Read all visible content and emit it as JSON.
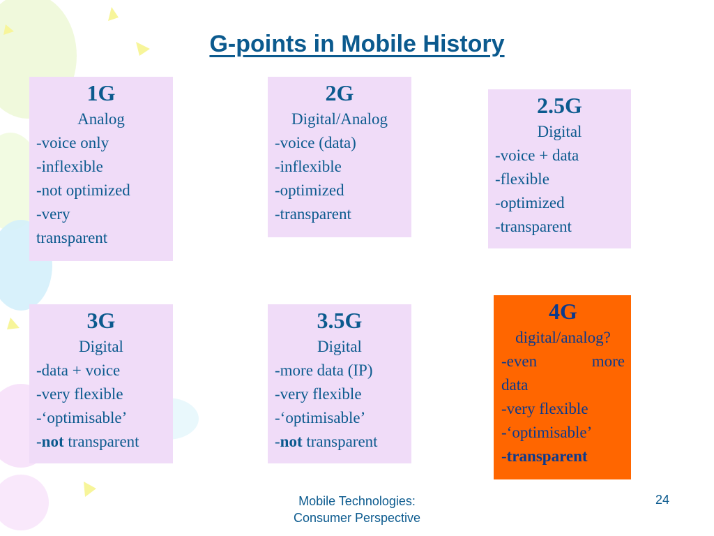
{
  "slide": {
    "title": "G-points in Mobile History",
    "footer_line1": "Mobile Technologies:",
    "footer_line2": "Consumer Perspective",
    "page_number": "24"
  },
  "cards": [
    {
      "gen": "1G",
      "tech": "Analog",
      "lines": [
        "-voice only",
        "-inflexible",
        "-not optimized",
        "-very",
        "transparent"
      ]
    },
    {
      "gen": "2G",
      "tech": "Digital/Analog",
      "lines": [
        "-voice (data)",
        "-inflexible",
        "-optimized",
        "-transparent"
      ]
    },
    {
      "gen": "2.5G",
      "tech": "Digital",
      "lines": [
        "-voice + data",
        "-flexible",
        "-optimized",
        "-transparent"
      ]
    },
    {
      "gen": "3G",
      "tech": "Digital",
      "lines": [
        "-data + voice",
        "-very flexible",
        "-‘optimisable’"
      ],
      "last_prefix": "-",
      "last_bold": "not",
      "last_rest": " transparent"
    },
    {
      "gen": "3.5G",
      "tech": "Digital",
      "lines": [
        "-more data (IP)",
        "-very flexible",
        "-‘optimisable’"
      ],
      "last_prefix": "-",
      "last_bold": "not",
      "last_rest": " transparent"
    },
    {
      "gen": "4G",
      "tech": "digital/analog?",
      "line_a1": "-even",
      "line_a2": "more",
      "lines": [
        "data",
        "-very flexible",
        "-‘optimisable’"
      ],
      "last_prefix": "-",
      "last_bold": "transparent",
      "last_rest": ""
    }
  ],
  "colors": {
    "card_bg": "#f0dcf8",
    "highlight_bg": "#ff6600",
    "text": "#0b5a8e"
  }
}
